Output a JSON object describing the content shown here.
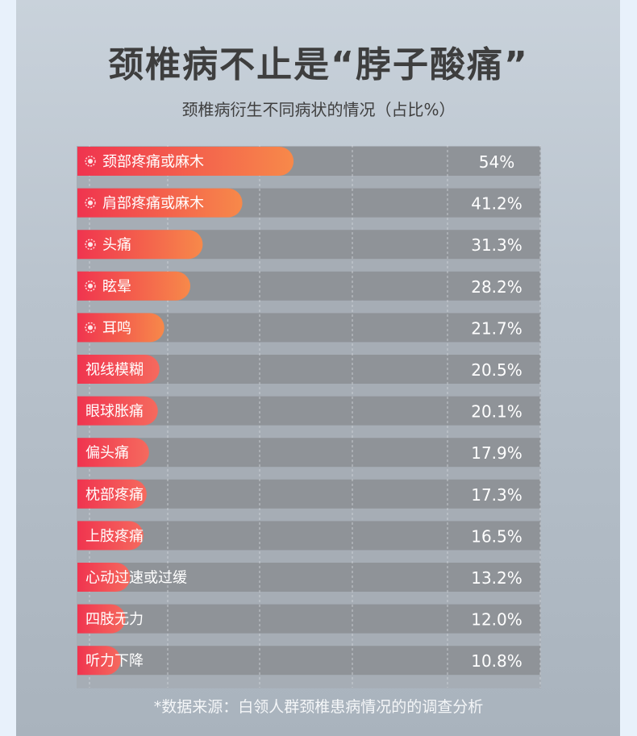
{
  "title": "颈椎病不止是“脖子酸痛”",
  "subtitle": "颈椎病衍生不同病状的情况（占比%）",
  "footnote": "*数据来源：白领人群颈椎患病情况的的调查分析",
  "colors": {
    "highlight_start": "#f0344f",
    "highlight_end": "#f7894a",
    "regular_start": "#f0344f",
    "regular_end": "#f56a5e",
    "track": "#8f9398",
    "gap": "#a6adb5"
  },
  "chart_data": {
    "type": "bar",
    "orientation": "horizontal",
    "title": "颈椎病衍生不同病状的情况（占比%）",
    "unit": "%",
    "categories": [
      "颈部疼痛或麻木",
      "肩部疼痛或麻木",
      "头痛",
      "眩晕",
      "耳鸣",
      "视线模糊",
      "眼球胀痛",
      "偏头痛",
      "枕部疼痛",
      "上肢疼痛",
      "心动过速或过缓",
      "四肢无力",
      "听力下降"
    ],
    "values": [
      54,
      41.2,
      31.3,
      28.2,
      21.7,
      20.5,
      20.1,
      17.9,
      17.3,
      16.5,
      13.2,
      12.0,
      10.8
    ],
    "value_labels": [
      "54%",
      "41.2%",
      "31.3%",
      "28.2%",
      "21.7%",
      "20.5%",
      "20.1%",
      "17.9%",
      "17.3%",
      "16.5%",
      "13.2%",
      "12.0%",
      "10.8%"
    ],
    "highlighted": [
      true,
      true,
      true,
      true,
      true,
      false,
      false,
      false,
      false,
      false,
      false,
      false,
      false
    ],
    "xlim": [
      0,
      100
    ],
    "grid": true,
    "legend": "none"
  }
}
